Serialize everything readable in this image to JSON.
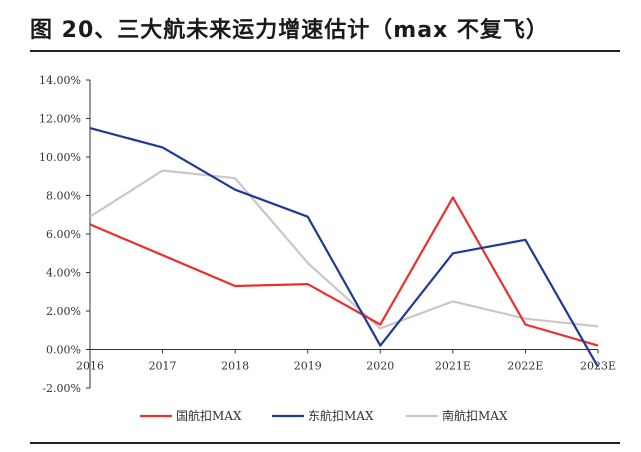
{
  "header": {
    "title": "图 20、三大航未来运力增速估计（max 不复飞）"
  },
  "chart_data": {
    "type": "line",
    "title": "",
    "xlabel": "",
    "ylabel": "",
    "categories": [
      "2016",
      "2017",
      "2018",
      "2019",
      "2020",
      "2021E",
      "2022E",
      "2023E"
    ],
    "ylim": [
      -2,
      14
    ],
    "yticks": [
      -2,
      0,
      2,
      4,
      6,
      8,
      10,
      12,
      14
    ],
    "ytick_labels": [
      "-2.00%",
      "0.00%",
      "2.00%",
      "4.00%",
      "6.00%",
      "8.00%",
      "10.00%",
      "12.00%",
      "14.00%"
    ],
    "grid": false,
    "legend_position": "bottom",
    "series": [
      {
        "name": "国航扣MAX",
        "color": "#e8312f",
        "values": [
          6.5,
          4.9,
          3.3,
          3.4,
          1.3,
          7.9,
          1.3,
          0.2
        ]
      },
      {
        "name": "东航扣MAX",
        "color": "#1f3a93",
        "values": [
          11.5,
          10.5,
          8.3,
          6.9,
          0.2,
          5.0,
          5.7,
          -0.9
        ]
      },
      {
        "name": "南航扣MAX",
        "color": "#c8c8c8",
        "values": [
          6.9,
          9.3,
          8.9,
          4.5,
          1.1,
          2.5,
          1.6,
          1.2
        ]
      }
    ]
  }
}
